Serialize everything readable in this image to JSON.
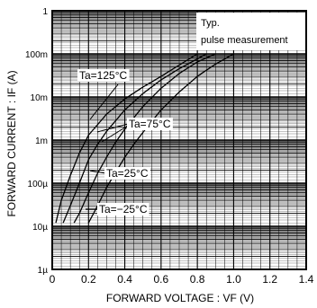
{
  "chart_data": {
    "type": "line",
    "xlabel": "FORWARD VOLTAGE : VF (V)",
    "ylabel": "FORWARD CURRENT : IF (A)",
    "x_scale": "linear",
    "y_scale": "log",
    "xlim": [
      0,
      1.4
    ],
    "ylim": [
      1e-06,
      1
    ],
    "x_ticks": [
      {
        "value": 0,
        "label": "0"
      },
      {
        "value": 0.2,
        "label": "0.2"
      },
      {
        "value": 0.4,
        "label": "0.4"
      },
      {
        "value": 0.6,
        "label": "0.6"
      },
      {
        "value": 0.8,
        "label": "0.8"
      },
      {
        "value": 1.0,
        "label": "1.0"
      },
      {
        "value": 1.2,
        "label": "1.2"
      },
      {
        "value": 1.4,
        "label": "1.4"
      }
    ],
    "y_ticks": [
      {
        "value": 1,
        "label": "1"
      },
      {
        "value": 0.1,
        "label": "100m"
      },
      {
        "value": 0.01,
        "label": "10m"
      },
      {
        "value": 0.001,
        "label": "1m"
      },
      {
        "value": 0.0001,
        "label": "100µ"
      },
      {
        "value": 1e-05,
        "label": "10µ"
      },
      {
        "value": 1e-06,
        "label": "1µ"
      }
    ],
    "grid": true,
    "annotation": [
      "Typ.",
      "pulse measurement"
    ],
    "series": [
      {
        "name": "Ta=125°C",
        "x": [
          0.02,
          0.05,
          0.1,
          0.15,
          0.2,
          0.3,
          0.4,
          0.5,
          0.6,
          0.7,
          0.8
        ],
        "y": [
          1.2e-05,
          4e-05,
          0.00015,
          0.0005,
          0.0013,
          0.004,
          0.009,
          0.017,
          0.03,
          0.055,
          0.1
        ]
      },
      {
        "name": "Ta=75°C",
        "x": [
          0.06,
          0.1,
          0.15,
          0.2,
          0.25,
          0.3,
          0.4,
          0.5,
          0.6,
          0.7,
          0.85
        ],
        "y": [
          1.2e-05,
          3e-05,
          0.0001,
          0.00035,
          0.0008,
          0.0016,
          0.005,
          0.012,
          0.025,
          0.045,
          0.1
        ]
      },
      {
        "name": "Ta=25°C",
        "x": [
          0.12,
          0.15,
          0.2,
          0.25,
          0.3,
          0.35,
          0.4,
          0.5,
          0.6,
          0.7,
          0.8,
          0.9
        ],
        "y": [
          1.2e-05,
          2e-05,
          6e-05,
          0.00017,
          0.0004,
          0.0009,
          0.0018,
          0.006,
          0.016,
          0.035,
          0.065,
          0.1
        ]
      },
      {
        "name": "Ta=−25°C",
        "x": [
          0.2,
          0.25,
          0.3,
          0.35,
          0.4,
          0.45,
          0.5,
          0.6,
          0.7,
          0.8,
          0.9,
          1.0
        ],
        "y": [
          1.2e-05,
          3e-05,
          8e-05,
          0.00018,
          0.0004,
          0.0008,
          0.0015,
          0.005,
          0.013,
          0.03,
          0.058,
          0.1
        ]
      }
    ]
  }
}
